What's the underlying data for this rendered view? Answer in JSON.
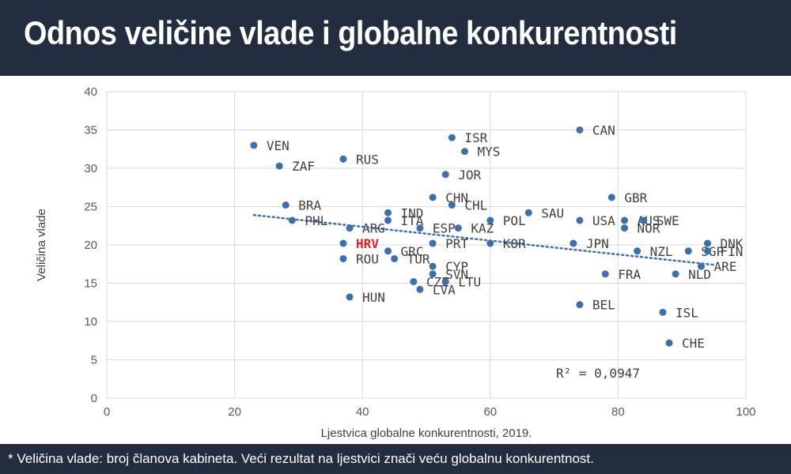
{
  "header": {
    "title": "Odnos veličine vlade i globalne konkurentnosti"
  },
  "footer": {
    "note": "* Veličina vlade: broj članova kabineta. Veći rezultat na ljestvici znači veću globalnu konkurentnost."
  },
  "colors": {
    "header_bg": "#222d3f",
    "point": "#3d6fa8",
    "trend": "#3d6fa8",
    "highlight": "#e0202a",
    "grid": "#d9d9d9"
  },
  "chart_data": {
    "type": "scatter",
    "title": "",
    "xlabel": "Ljestvica globalne konkurentnosti, 2019.",
    "ylabel": "Veličina vlade",
    "xlim": [
      0,
      100
    ],
    "ylim": [
      0,
      40
    ],
    "xticks": [
      0,
      20,
      40,
      60,
      80,
      100
    ],
    "yticks": [
      0,
      5,
      10,
      15,
      20,
      25,
      30,
      35,
      40
    ],
    "grid": true,
    "trendline": {
      "type": "linear",
      "r2_label": "R² = 0,0947",
      "x": [
        23,
        95
      ],
      "y": [
        23.9,
        17.4
      ]
    },
    "highlight": "HRV",
    "points": [
      {
        "label": "VEN",
        "x": 23,
        "y": 33
      },
      {
        "label": "ZAF",
        "x": 27,
        "y": 30.3
      },
      {
        "label": "RUS",
        "x": 37,
        "y": 31.2
      },
      {
        "label": "ISR",
        "x": 54,
        "y": 34
      },
      {
        "label": "MYS",
        "x": 56,
        "y": 32.2
      },
      {
        "label": "CAN",
        "x": 74,
        "y": 35
      },
      {
        "label": "JOR",
        "x": 53,
        "y": 29.2
      },
      {
        "label": "CHN",
        "x": 51,
        "y": 26.2
      },
      {
        "label": "GBR",
        "x": 79,
        "y": 26.2
      },
      {
        "label": "BRA",
        "x": 28,
        "y": 25.2
      },
      {
        "label": "CHL",
        "x": 54,
        "y": 25.2
      },
      {
        "label": "IND",
        "x": 44,
        "y": 24.2
      },
      {
        "label": "SAU",
        "x": 66,
        "y": 24.2
      },
      {
        "label": "PHL",
        "x": 29,
        "y": 23.2
      },
      {
        "label": "ITA",
        "x": 44,
        "y": 23.2
      },
      {
        "label": "POL",
        "x": 60,
        "y": 23.2
      },
      {
        "label": "USA",
        "x": 74,
        "y": 23.2
      },
      {
        "label": "AUS",
        "x": 81,
        "y": 23.2
      },
      {
        "label": "SWE",
        "x": 84,
        "y": 23.2
      },
      {
        "label": "ARG",
        "x": 38,
        "y": 22.2
      },
      {
        "label": "ESP",
        "x": 49,
        "y": 22.2
      },
      {
        "label": "KAZ",
        "x": 55,
        "y": 22.2
      },
      {
        "label": "NOR",
        "x": 81,
        "y": 22.2
      },
      {
        "label": "HRV",
        "x": 37,
        "y": 20.2
      },
      {
        "label": "PRT",
        "x": 51,
        "y": 20.2
      },
      {
        "label": "KOR",
        "x": 60,
        "y": 20.2
      },
      {
        "label": "JPN",
        "x": 73,
        "y": 20.2
      },
      {
        "label": "DNK",
        "x": 94,
        "y": 20.2
      },
      {
        "label": "GRC",
        "x": 44,
        "y": 19.2
      },
      {
        "label": "NZL",
        "x": 83,
        "y": 19.2
      },
      {
        "label": "SGP",
        "x": 91,
        "y": 19.2
      },
      {
        "label": "FIN",
        "x": 94,
        "y": 19.2
      },
      {
        "label": "ROU",
        "x": 37,
        "y": 18.2
      },
      {
        "label": "TUR",
        "x": 45,
        "y": 18.2
      },
      {
        "label": "ARE",
        "x": 93,
        "y": 17.2
      },
      {
        "label": "CYP",
        "x": 51,
        "y": 17.2
      },
      {
        "label": "SVN",
        "x": 51,
        "y": 16.2
      },
      {
        "label": "FRA",
        "x": 78,
        "y": 16.2
      },
      {
        "label": "NLD",
        "x": 89,
        "y": 16.2
      },
      {
        "label": "CZE",
        "x": 48,
        "y": 15.2
      },
      {
        "label": "LTU",
        "x": 53,
        "y": 15.2
      },
      {
        "label": "LVA",
        "x": 49,
        "y": 14.2
      },
      {
        "label": "HUN",
        "x": 38,
        "y": 13.2
      },
      {
        "label": "BEL",
        "x": 74,
        "y": 12.2
      },
      {
        "label": "ISL",
        "x": 87,
        "y": 11.2
      },
      {
        "label": "CHE",
        "x": 88,
        "y": 7.2
      }
    ]
  }
}
